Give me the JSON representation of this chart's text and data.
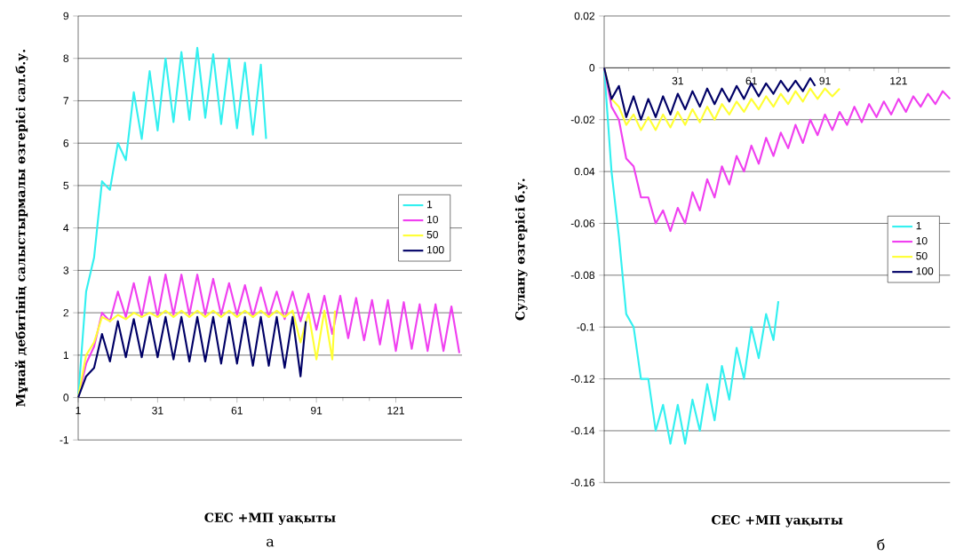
{
  "chart_data": [
    {
      "type": "line",
      "xlabel": "СЕС +МП уақыты",
      "ylabel": "Мұнай дебитінің салыстырмалы өзгерісі сал.б.у.",
      "annotations": [
        "а"
      ],
      "xlim": [
        1,
        146
      ],
      "ylim": [
        -1,
        9
      ],
      "xticks": [
        1,
        31,
        61,
        91,
        121
      ],
      "yticks": [
        -1,
        0,
        1,
        2,
        3,
        4,
        5,
        6,
        7,
        8,
        9
      ],
      "grid": "y",
      "legend": "right",
      "series": [
        {
          "name": "1",
          "color": "#33f0f0",
          "x": [
            1,
            4,
            7,
            10,
            13,
            16,
            19,
            22,
            25,
            28,
            31,
            34,
            37,
            40,
            43,
            46,
            49,
            52,
            55,
            58,
            61,
            64,
            67,
            70,
            72
          ],
          "values": [
            0,
            2.5,
            3.3,
            5.1,
            4.9,
            6.0,
            5.6,
            7.2,
            6.1,
            7.7,
            6.3,
            8.0,
            6.5,
            8.15,
            6.55,
            8.25,
            6.6,
            8.1,
            6.45,
            8.0,
            6.35,
            7.9,
            6.2,
            7.85,
            6.1
          ]
        },
        {
          "name": "10",
          "color": "#f040f0",
          "x": [
            1,
            4,
            7,
            10,
            13,
            16,
            19,
            22,
            25,
            28,
            31,
            34,
            37,
            40,
            43,
            46,
            49,
            52,
            55,
            58,
            61,
            64,
            67,
            70,
            73,
            76,
            79,
            82,
            85,
            88,
            91,
            94,
            97,
            100,
            103,
            106,
            109,
            112,
            115,
            118,
            121,
            124,
            127,
            130,
            133,
            136,
            139,
            142,
            145
          ],
          "values": [
            0,
            0.8,
            1.2,
            2.0,
            1.8,
            2.5,
            1.9,
            2.7,
            1.9,
            2.85,
            1.9,
            2.9,
            1.95,
            2.9,
            1.95,
            2.9,
            1.95,
            2.8,
            1.95,
            2.7,
            1.95,
            2.65,
            1.9,
            2.6,
            1.9,
            2.5,
            1.85,
            2.5,
            1.8,
            2.45,
            1.6,
            2.4,
            1.5,
            2.4,
            1.4,
            2.35,
            1.35,
            2.3,
            1.25,
            2.3,
            1.1,
            2.25,
            1.15,
            2.2,
            1.1,
            2.2,
            1.1,
            2.15,
            1.05
          ]
        },
        {
          "name": "50",
          "color": "#ffff33",
          "x": [
            1,
            4,
            7,
            10,
            13,
            16,
            19,
            22,
            25,
            28,
            31,
            34,
            37,
            40,
            43,
            46,
            49,
            52,
            55,
            58,
            61,
            64,
            67,
            70,
            73,
            76,
            79,
            82,
            85,
            88,
            91,
            94,
            97,
            98
          ],
          "values": [
            0,
            1.0,
            1.3,
            1.9,
            1.8,
            1.95,
            1.85,
            2.0,
            1.9,
            2.0,
            1.9,
            2.05,
            1.9,
            2.05,
            1.9,
            2.05,
            1.9,
            2.05,
            1.9,
            2.05,
            1.9,
            2.05,
            1.9,
            2.05,
            1.9,
            2.05,
            1.9,
            2.05,
            1.3,
            2.0,
            0.9,
            2.05,
            0.9,
            2.05
          ]
        },
        {
          "name": "100",
          "color": "#000066",
          "x": [
            1,
            4,
            7,
            10,
            13,
            16,
            19,
            22,
            25,
            28,
            31,
            34,
            37,
            40,
            43,
            46,
            49,
            52,
            55,
            58,
            61,
            64,
            67,
            70,
            73,
            76,
            79,
            82,
            85,
            87
          ],
          "values": [
            0,
            0.5,
            0.7,
            1.5,
            0.85,
            1.8,
            0.95,
            1.85,
            0.95,
            1.9,
            0.95,
            1.9,
            0.9,
            1.9,
            0.85,
            1.9,
            0.85,
            1.9,
            0.8,
            1.9,
            0.8,
            1.9,
            0.75,
            1.9,
            0.75,
            1.9,
            0.7,
            1.9,
            0.5,
            1.8
          ]
        }
      ]
    },
    {
      "type": "line",
      "xlabel": "СЕС +МП уақыты",
      "ylabel": "Сулану өзгерісі б.у.",
      "annotations": [
        "б"
      ],
      "xlim": [
        1,
        142
      ],
      "ylim": [
        -0.16,
        0.02
      ],
      "xticks": [
        {
          "value": 1,
          "label": null
        },
        31,
        61,
        91,
        121
      ],
      "yticks": [
        -0.16,
        -0.14,
        -0.12,
        -0.1,
        -0.08,
        -0.06,
        {
          "value": -0.04,
          "label": "0.04"
        },
        -0.02,
        0,
        0.02
      ],
      "grid": "y",
      "legend": "right",
      "series": [
        {
          "name": "1",
          "color": "#33f0f0",
          "x": [
            1,
            4,
            7,
            10,
            13,
            16,
            19,
            22,
            25,
            28,
            31,
            34,
            37,
            40,
            43,
            46,
            49,
            52,
            55,
            58,
            61,
            64,
            67,
            70,
            72
          ],
          "values": [
            0,
            -0.04,
            -0.065,
            -0.095,
            -0.1,
            -0.12,
            -0.12,
            -0.14,
            -0.13,
            -0.145,
            -0.13,
            -0.145,
            -0.128,
            -0.14,
            -0.122,
            -0.136,
            -0.115,
            -0.128,
            -0.108,
            -0.12,
            -0.1,
            -0.112,
            -0.095,
            -0.105,
            -0.09
          ]
        },
        {
          "name": "10",
          "color": "#f040f0",
          "x": [
            1,
            4,
            7,
            10,
            13,
            16,
            19,
            22,
            25,
            28,
            31,
            34,
            37,
            40,
            43,
            46,
            49,
            52,
            55,
            58,
            61,
            64,
            67,
            70,
            73,
            76,
            79,
            82,
            85,
            88,
            91,
            94,
            97,
            100,
            103,
            106,
            109,
            112,
            115,
            118,
            121,
            124,
            127,
            130,
            133,
            136,
            139,
            142
          ],
          "values": [
            0,
            -0.015,
            -0.02,
            -0.035,
            -0.038,
            -0.05,
            -0.05,
            -0.06,
            -0.055,
            -0.063,
            -0.054,
            -0.06,
            -0.048,
            -0.055,
            -0.043,
            -0.05,
            -0.038,
            -0.045,
            -0.034,
            -0.04,
            -0.03,
            -0.037,
            -0.027,
            -0.034,
            -0.025,
            -0.031,
            -0.022,
            -0.029,
            -0.02,
            -0.026,
            -0.018,
            -0.024,
            -0.017,
            -0.022,
            -0.015,
            -0.021,
            -0.014,
            -0.019,
            -0.013,
            -0.018,
            -0.012,
            -0.017,
            -0.011,
            -0.015,
            -0.01,
            -0.014,
            -0.009,
            -0.012
          ]
        },
        {
          "name": "50",
          "color": "#ffff33",
          "x": [
            1,
            4,
            7,
            10,
            13,
            16,
            19,
            22,
            25,
            28,
            31,
            34,
            37,
            40,
            43,
            46,
            49,
            52,
            55,
            58,
            61,
            64,
            67,
            70,
            73,
            76,
            79,
            82,
            85,
            88,
            91,
            94,
            97
          ],
          "values": [
            0,
            -0.012,
            -0.015,
            -0.022,
            -0.018,
            -0.024,
            -0.019,
            -0.024,
            -0.018,
            -0.023,
            -0.017,
            -0.022,
            -0.016,
            -0.021,
            -0.015,
            -0.02,
            -0.014,
            -0.018,
            -0.013,
            -0.017,
            -0.012,
            -0.016,
            -0.011,
            -0.015,
            -0.01,
            -0.014,
            -0.009,
            -0.013,
            -0.008,
            -0.012,
            -0.008,
            -0.011,
            -0.008
          ]
        },
        {
          "name": "100",
          "color": "#000066",
          "x": [
            1,
            4,
            7,
            10,
            13,
            16,
            19,
            22,
            25,
            28,
            31,
            34,
            37,
            40,
            43,
            46,
            49,
            52,
            55,
            58,
            61,
            64,
            67,
            70,
            73,
            76,
            79,
            82,
            85,
            87
          ],
          "values": [
            0,
            -0.012,
            -0.007,
            -0.019,
            -0.011,
            -0.02,
            -0.012,
            -0.019,
            -0.011,
            -0.018,
            -0.01,
            -0.016,
            -0.009,
            -0.015,
            -0.008,
            -0.014,
            -0.008,
            -0.013,
            -0.007,
            -0.012,
            -0.006,
            -0.011,
            -0.006,
            -0.01,
            -0.005,
            -0.009,
            -0.005,
            -0.009,
            -0.004,
            -0.007
          ]
        }
      ]
    }
  ]
}
